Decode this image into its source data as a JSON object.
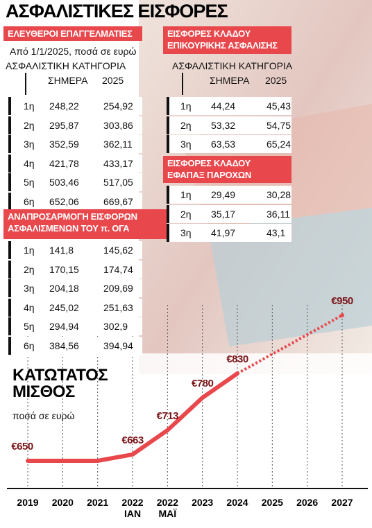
{
  "title": "ΑΣΦΑΛΙΣΤΙΚΕΣ ΕΙΣΦΟΡΕΣ",
  "tables": [
    {
      "title": "ΕΛΕΥΘΕΡΟΙ ΕΠΑΓΓΕΛΜΑΤΙΕΣ",
      "note": "Από 1/1/2025, ποσά σε ευρώ",
      "caption": "ΑΣΦΑΛΙΣΤΙΚΗ ΚΑΤΗΓΟΡΙΑ",
      "columns": [
        "ΣΗΜΕΡΑ",
        "2025"
      ],
      "rows": [
        [
          "1η",
          "248,22",
          "254,92"
        ],
        [
          "2η",
          "295,87",
          "303,86"
        ],
        [
          "3η",
          "352,59",
          "362,11"
        ],
        [
          "4η",
          "421,78",
          "433,17"
        ],
        [
          "5η",
          "503,46",
          "517,05"
        ],
        [
          "6η",
          "652,06",
          "669,67"
        ]
      ]
    },
    {
      "title": "ΕΙΣΦΟΡΕΣ ΚΛΑΔΟΥ\nΕΠΙΚΟΥΡΙΚΗΣ ΑΣΦΑΛΙΣΗΣ",
      "caption": "ΑΣΦΑΛΙΣΤΙΚΗ ΚΑΤΗΓΟΡΙΑ",
      "columns": [
        "ΣΗΜΕΡΑ",
        "2025"
      ],
      "rows": [
        [
          "1η",
          "44,24",
          "45,43"
        ],
        [
          "2η",
          "53,32",
          "54,75"
        ],
        [
          "3η",
          "63,53",
          "65,24"
        ]
      ]
    },
    {
      "title": "ΕΙΣΦΟΡΕΣ ΚΛΑΔΟΥ\nΕΦΑΠΑΞ ΠΑΡΟΧΩΝ",
      "rows": [
        [
          "1η",
          "29,49",
          "30,28"
        ],
        [
          "2η",
          "35,17",
          "36,11"
        ],
        [
          "3η",
          "41,97",
          "43,1"
        ]
      ]
    },
    {
      "title": "ΑΝΑΠΡΟΣΑΡΜΟΓΗ ΕΙΣΦΟΡΩΝ\nΑΣΦΑΛΙΣΜΕΝΩΝ ΤΟΥ π. ΟΓΑ",
      "rows": [
        [
          "1η",
          "141,8",
          "145,62"
        ],
        [
          "2η",
          "170,15",
          "174,74"
        ],
        [
          "3η",
          "204,18",
          "209,69"
        ],
        [
          "4η",
          "245,02",
          "251,63"
        ],
        [
          "5η",
          "294,94",
          "302,9"
        ],
        [
          "6η",
          "384,56",
          "394,94"
        ]
      ]
    }
  ],
  "chart_data": {
    "type": "line",
    "title": "ΚΑΤΩΤΑΤΟΣ\nΜΙΣΘΟΣ",
    "subtitle": "ποσά σε ευρώ",
    "categories": [
      "2019",
      "2020",
      "2021",
      "2022\nΙΑΝ",
      "2022\nΜΑΪ",
      "2023",
      "2024",
      "2025",
      "2026",
      "2027"
    ],
    "series": [
      {
        "color": "#e8474c",
        "values": [
          650,
          650,
          650,
          663,
          713,
          780,
          830,
          null,
          null,
          950
        ],
        "value_labels": [
          "€650",
          null,
          null,
          "€663",
          "€713",
          "€780",
          "€830",
          null,
          null,
          "€950"
        ]
      }
    ]
  }
}
